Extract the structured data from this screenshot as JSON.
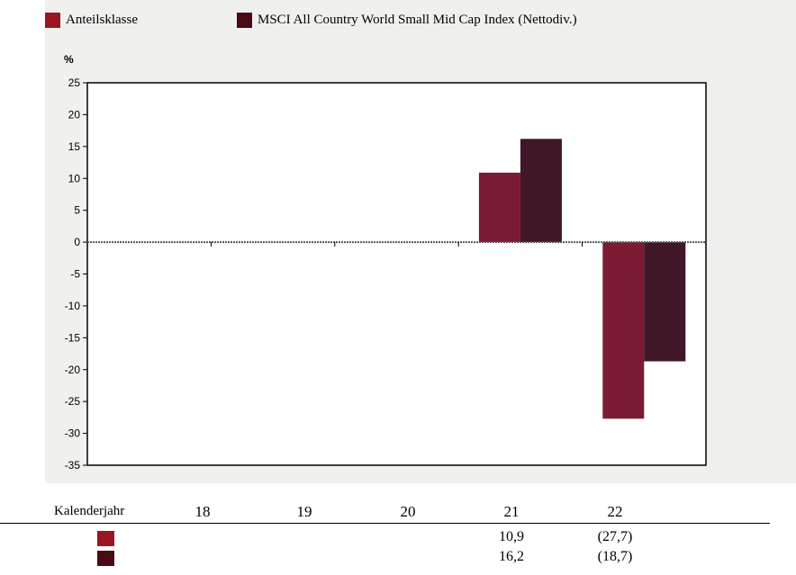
{
  "colors": {
    "series_a": "#7b1a33",
    "series_b": "#401628",
    "swatch_a": "#9b1522",
    "swatch_b": "#4a0a14"
  },
  "chart_data": {
    "type": "bar",
    "unit_label": "%",
    "legend_position": "top",
    "categories": [
      "18",
      "19",
      "20",
      "21",
      "22"
    ],
    "series": [
      {
        "name": "Anteilsklasse",
        "values": [
          null,
          null,
          null,
          10.9,
          -27.7
        ]
      },
      {
        "name": "MSCI All Country World Small Mid Cap Index (Nettodiv.)",
        "values": [
          null,
          null,
          null,
          16.2,
          -18.7
        ]
      }
    ],
    "ylim": [
      -35,
      25
    ],
    "yticks": [
      25,
      20,
      15,
      10,
      5,
      0,
      -5,
      -10,
      -15,
      -20,
      -25,
      -30,
      -35
    ],
    "ytick_labels": [
      "25",
      "20",
      "15",
      "10",
      "5",
      "0",
      "-5",
      "-10",
      "-15",
      "-20",
      "-25",
      "-30",
      "-35"
    ],
    "zero_line": "dotted"
  },
  "table": {
    "header_label": "Kalenderjahr",
    "years": [
      "18",
      "19",
      "20",
      "21",
      "22"
    ],
    "rows": [
      {
        "values": [
          "",
          "",
          "",
          "10,9",
          "(27,7)"
        ]
      },
      {
        "values": [
          "",
          "",
          "",
          "16,2",
          "(18,7)"
        ]
      }
    ]
  }
}
